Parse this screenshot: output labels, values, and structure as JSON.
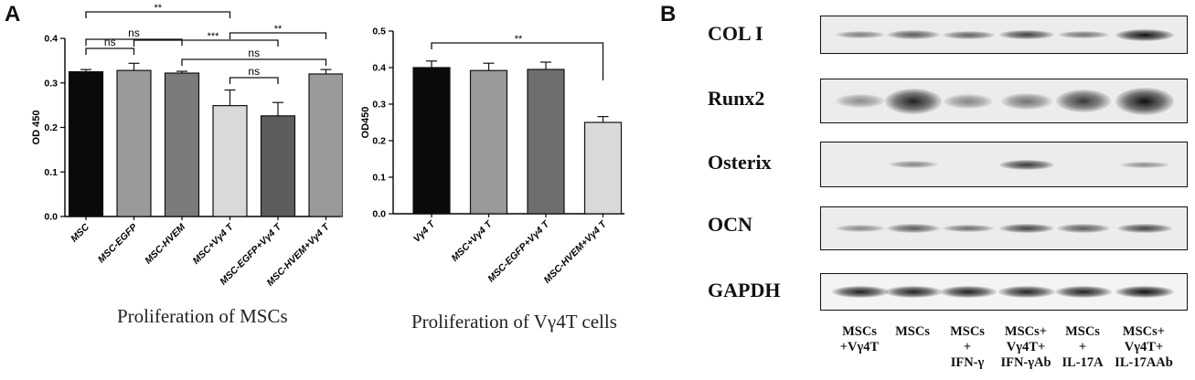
{
  "panels": {
    "a": "A",
    "b": "B"
  },
  "chart_data": [
    {
      "type": "bar",
      "title": "Proliferation of MSCs",
      "ylabel": "OD 450",
      "ylim": [
        0,
        0.4
      ],
      "yticks": [
        "0.0",
        "0.1",
        "0.2",
        "0.3",
        "0.4"
      ],
      "categories": [
        "MSC",
        "MSC-EGFP",
        "MSC-HVEM",
        "MSC+Vγ4 T",
        "MSC-EGFP+Vγ4 T",
        "MSC-HVEM+Vγ4 T"
      ],
      "values": [
        0.325,
        0.328,
        0.322,
        0.249,
        0.226,
        0.32
      ],
      "errors": [
        0.005,
        0.016,
        0.004,
        0.035,
        0.03,
        0.01
      ],
      "colors": [
        "#0a0a0a",
        "#9a9a9a",
        "#7b7b7b",
        "#d9d9d9",
        "#5d5d5d",
        "#9a9a9a"
      ],
      "significance": [
        {
          "from": 0,
          "to": 3,
          "label": "**"
        },
        {
          "from": 3,
          "to": 5,
          "label": "**"
        },
        {
          "from": 0,
          "to": 1,
          "label": "ns"
        },
        {
          "from": 0,
          "to": 2,
          "label": "ns"
        },
        {
          "from": 1,
          "to": 4,
          "label": "***"
        },
        {
          "from": 2,
          "to": 5,
          "label": "ns"
        },
        {
          "from": 3,
          "to": 4,
          "label": "ns"
        }
      ]
    },
    {
      "type": "bar",
      "title": "Proliferation of Vγ4T cells",
      "ylabel": "OD450",
      "ylim": [
        0,
        0.5
      ],
      "yticks": [
        "0.0",
        "0.1",
        "0.2",
        "0.3",
        "0.4",
        "0.5"
      ],
      "categories": [
        "Vγ4 T",
        "MSC+Vγ4 T",
        "MSC-EGFP+Vγ4 T",
        "MSC-HVEM+Vγ4 T"
      ],
      "values": [
        0.4,
        0.392,
        0.395,
        0.25
      ],
      "errors": [
        0.018,
        0.02,
        0.02,
        0.016
      ],
      "colors": [
        "#0a0a0a",
        "#9a9a9a",
        "#6e6e6e",
        "#d9d9d9"
      ],
      "significance": [
        {
          "from": 0,
          "to": 3,
          "label": "**"
        }
      ]
    }
  ],
  "western_blot": {
    "proteins": [
      "COL I",
      "Runx2",
      "Osterix",
      "OCN",
      "GAPDH"
    ],
    "lanes": [
      [
        "MSCs",
        "+Vγ4T"
      ],
      [
        "MSCs"
      ],
      [
        "MSCs",
        "+",
        "IFN-γ"
      ],
      [
        "MSCs+",
        "Vγ4T+",
        "IFN-γAb"
      ],
      [
        "MSCs",
        "+",
        "IL-17A"
      ],
      [
        "MSCs+",
        "Vγ4T+",
        "IL-17AAb"
      ]
    ],
    "band_intensity": [
      [
        0.35,
        0.55,
        0.5,
        0.72,
        0.42,
        1.0
      ],
      [
        0.25,
        0.9,
        0.3,
        0.4,
        0.75,
        1.0
      ],
      [
        0.0,
        0.3,
        0.0,
        0.75,
        0.0,
        0.25
      ],
      [
        0.3,
        0.55,
        0.45,
        0.7,
        0.55,
        0.7
      ],
      [
        0.9,
        0.9,
        0.9,
        0.88,
        0.9,
        1.0
      ]
    ]
  }
}
